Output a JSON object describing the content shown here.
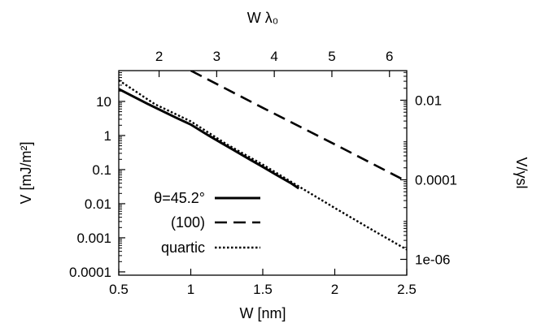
{
  "chart_data": {
    "type": "line",
    "xlabel": "W [nm]",
    "ylabel": "V [mJ/m²]",
    "x2label": "W λ₀",
    "y2label": "V/γsl",
    "xlim": [
      0.5,
      2.5
    ],
    "ylim": [
      8e-05,
      80
    ],
    "y_scale": "log",
    "x2lim": [
      1.3,
      6.3
    ],
    "y2lim": [
      4e-07,
      0.0555
    ],
    "y2_scale": "log",
    "grid": false,
    "legend_position": "bottom-left",
    "x_ticks": [
      {
        "value": 0.5,
        "label": "0.5"
      },
      {
        "value": 1.0,
        "label": "1"
      },
      {
        "value": 1.5,
        "label": "1.5"
      },
      {
        "value": 2.0,
        "label": "2"
      },
      {
        "value": 2.5,
        "label": "2.5"
      }
    ],
    "y_ticks": [
      {
        "value": 10,
        "label": "10"
      },
      {
        "value": 1,
        "label": "1"
      },
      {
        "value": 0.1,
        "label": "0.1"
      },
      {
        "value": 0.01,
        "label": "0.01"
      },
      {
        "value": 0.001,
        "label": "0.001"
      },
      {
        "value": 0.0001,
        "label": "0.0001"
      }
    ],
    "x2_ticks": [
      {
        "value": 2,
        "label": "2"
      },
      {
        "value": 3,
        "label": "3"
      },
      {
        "value": 4,
        "label": "4"
      },
      {
        "value": 5,
        "label": "5"
      },
      {
        "value": 6,
        "label": "6"
      }
    ],
    "y2_ticks": [
      {
        "value": 0.01,
        "label": "0.01"
      },
      {
        "value": 0.0001,
        "label": "0.0001"
      },
      {
        "value": 1e-06,
        "label": "1e-06"
      }
    ],
    "series": [
      {
        "name": "θ=45.2°",
        "style": "solid",
        "color": "#000000",
        "points": [
          [
            0.5,
            23
          ],
          [
            0.7,
            8.5
          ],
          [
            0.9,
            3.3
          ],
          [
            1.0,
            2.1
          ],
          [
            1.1,
            1.15
          ],
          [
            1.2,
            0.65
          ],
          [
            1.3,
            0.37
          ],
          [
            1.4,
            0.21
          ],
          [
            1.5,
            0.12
          ],
          [
            1.6,
            0.068
          ],
          [
            1.7,
            0.039
          ],
          [
            1.75,
            0.028
          ]
        ]
      },
      {
        "name": "(100)",
        "style": "dashed",
        "color": "#000000",
        "points": [
          [
            1.0,
            80
          ],
          [
            1.5,
            6.5
          ],
          [
            2.0,
            0.55
          ],
          [
            2.5,
            0.045
          ]
        ]
      },
      {
        "name": "quartic",
        "style": "dotted",
        "color": "#000000",
        "points": [
          [
            0.5,
            42
          ],
          [
            0.75,
            8.3
          ],
          [
            1.0,
            2.6
          ],
          [
            1.25,
            0.55
          ],
          [
            1.5,
            0.14
          ],
          [
            1.75,
            0.032
          ],
          [
            2.0,
            0.0075
          ],
          [
            2.25,
            0.0018
          ],
          [
            2.5,
            0.00045
          ]
        ]
      }
    ]
  }
}
